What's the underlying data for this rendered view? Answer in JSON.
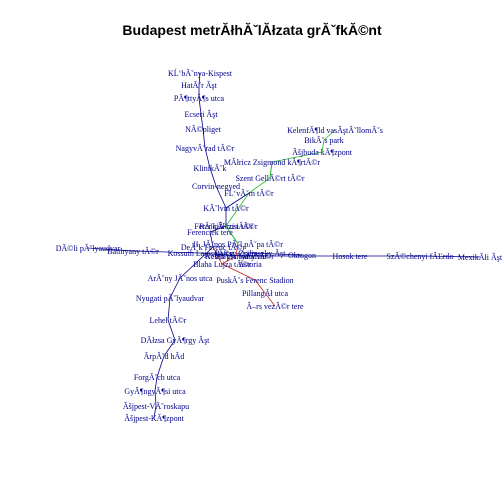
{
  "title": "Budapest metrĂłhĂˇlĂłzata grĂˇfkĂ©nt",
  "colors": {
    "line": "#00008b",
    "green": "#22bb22",
    "red": "#cc2222",
    "label": "#00008b"
  },
  "stations": [
    "KĹ‘bĂˇnya-Kispest",
    "HatĂˇr Ăşt",
    "PĂ¶ttyĂ¶s utca",
    "Ecseri Ăşt",
    "NĂ©pliget",
    "NagyvĂˇrad tĂ©r",
    "KlinikĂˇk",
    "Corvin-negyed",
    "KĂˇlvin tĂ©r",
    "FerenciĂˇrosi tĂ©r",
    "Ferenciek tere",
    "DeĂˇk Ferenc tĂ©r",
    "ArĂˇny JĂˇnos utca",
    "Nyugati pĂˇlyaudvar",
    "Lehel tĂ©r",
    "DĂłzsa GyĂ¶rgy Ăşt",
    "ĂrpĂˇd hĂ­d",
    "ForgĂˇch utca",
    "GyĂ¶ngyĂ¶si utca",
    "Ăšjpest-VĂˇroskapu",
    "Ăšjpest-KĂ¶zpont",
    "KelenfĂ¶ld vasĂştĂˇllomĂˇs",
    "BikĂˇs park",
    "Ăšjbuda kĂ¶zpont",
    "MĂłricz Zsigmond kĂ¶rtĂ©r",
    "Szent GellĂ©rt tĂ©r",
    "FĹ‘vĂˇm tĂ©r",
    "RĂˇkĂłczi tĂ©r",
    "II. JĂˇnos PĂˇl pĂˇpa tĂ©r",
    "Keleti pĂˇlyaudvar",
    "Blaha Lujza tĂ©r",
    "PuskĂˇs Ferenc Stadion",
    "PillangĂł utca",
    "Ă–rs vezĂ©r tere",
    "Oktogon",
    "Bajcsy-Zsilinszky Ăşt",
    "Astoria",
    "Opera",
    "DĂ©li pĂˇlyaudvar",
    "Batthyany tĂ©r",
    "Kossuth Lajos tĂ©r",
    "VĂ¶rĂ¶smarty tĂ©r",
    "Hosok tere",
    "SzĂ©chenyi fĂĽrdo",
    "MexikĂłi Ăşt"
  ]
}
